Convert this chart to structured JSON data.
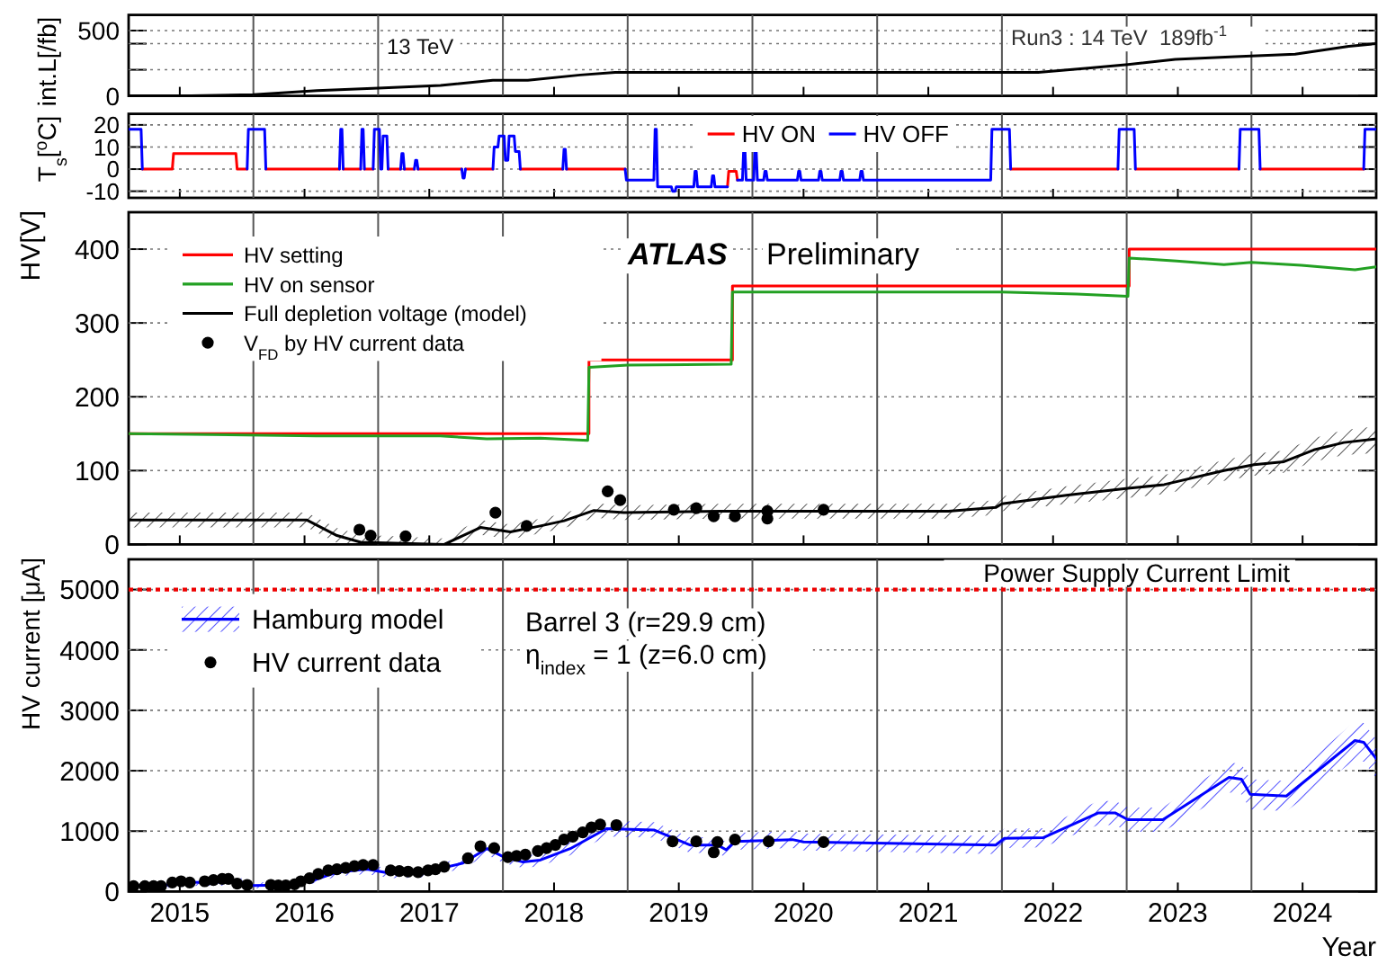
{
  "chart_data": [
    {
      "type": "line",
      "ylabel": "int.L[/fb]",
      "annotations": [
        "13 TeV",
        "Run3 : 14 TeV  189fb$^{-1}$"
      ],
      "x": [
        2015.0,
        2015.5,
        2016.0,
        2016.51,
        2017.0,
        2017.5,
        2017.92,
        2018.2,
        2018.62,
        2018.9,
        2022.29,
        2022.67,
        2023.01,
        2023.39,
        2023.87,
        2024.35,
        2024.78,
        2025.0
      ],
      "series": [
        {
          "color": "#000000",
          "values": [
            0,
            0,
            10,
            40,
            60,
            80,
            120,
            120,
            160,
            180,
            180,
            210,
            240,
            280,
            300,
            320,
            380,
            400
          ]
        }
      ],
      "xlim": [
        2015,
        2025
      ],
      "xticks": [
        {
          "value": 2015.41,
          "label": null
        },
        {
          "value": 2016.41,
          "label": null
        },
        {
          "value": 2017.41,
          "label": null
        },
        {
          "value": 2018.41,
          "label": null
        },
        {
          "value": 2019.41,
          "label": null
        },
        {
          "value": 2020.41,
          "label": null
        },
        {
          "value": 2021.41,
          "label": null
        },
        {
          "value": 2022.41,
          "label": null
        },
        {
          "value": 2023.41,
          "label": null
        },
        {
          "value": 2024.41,
          "label": null
        }
      ],
      "ylim": [
        0,
        620
      ],
      "yticks": [
        0,
        {
          "value": 200,
          "label": null
        },
        {
          "value": 400,
          "label": null
        },
        500
      ],
      "grid": "y",
      "tick_labels": "y",
      "ref_lines": [
        {
          "axis": "x",
          "value": 2016,
          "color": "#555555"
        },
        {
          "axis": "x",
          "value": 2017,
          "color": "#555555"
        },
        {
          "axis": "x",
          "value": 2018,
          "color": "#555555"
        },
        {
          "axis": "x",
          "value": 2019,
          "color": "#555555"
        },
        {
          "axis": "x",
          "value": 2020,
          "color": "#555555"
        },
        {
          "axis": "x",
          "value": 2021,
          "color": "#555555"
        },
        {
          "axis": "x",
          "value": 2022,
          "color": "#555555"
        },
        {
          "axis": "x",
          "value": 2023,
          "color": "#555555"
        },
        {
          "axis": "x",
          "value": 2024,
          "color": "#555555"
        }
      ]
    },
    {
      "type": "line",
      "ylabel": "T$_{s}$[$^{o}$C]",
      "series": [
        {
          "name": "HV ON",
          "color": "#ff0000",
          "x": [
            2015.11,
            2015.35,
            2015.36,
            2015.86,
            2015.87,
            2015.95,
            null,
            2016.1,
            2016.69,
            null,
            2016.72,
            2016.86,
            null,
            2016.89,
            2016.96,
            null,
            2017.08,
            2017.18,
            null,
            2017.21,
            2017.29,
            null,
            2017.32,
            2017.67,
            null,
            2017.7,
            2017.92,
            null,
            2018.14,
            2018.48,
            null,
            2018.51,
            2018.98,
            null,
            2019.8,
            2019.81,
            2019.87,
            2019.88,
            null,
            2022.07,
            2022.93,
            null,
            2023.07,
            2023.9,
            null,
            2024.07,
            2024.9
          ],
          "values": [
            0,
            0,
            7,
            7,
            0,
            0,
            null,
            0,
            0,
            null,
            0,
            0,
            null,
            0,
            0,
            null,
            0,
            0,
            null,
            0,
            0,
            null,
            0,
            0,
            null,
            0,
            0,
            null,
            0,
            0,
            null,
            0,
            0,
            null,
            -8,
            -1,
            -1,
            -5,
            null,
            0,
            0,
            null,
            0,
            0,
            null,
            0,
            0
          ]
        },
        {
          "name": "HV OFF",
          "color": "#0000ff",
          "x": [
            2015.0,
            2015.1,
            2015.11,
            null,
            2015.95,
            2015.96,
            2016.09,
            2016.1,
            null,
            2016.69,
            2016.7,
            2016.71,
            2016.72,
            null,
            2016.86,
            2016.87,
            2016.88,
            2016.89,
            null,
            2016.96,
            2016.97,
            2017.01,
            2017.02,
            2017.03,
            2017.04,
            2017.07,
            2017.08,
            null,
            2017.18,
            2017.19,
            2017.2,
            2017.21,
            null,
            2017.29,
            2017.3,
            2017.31,
            2017.32,
            null,
            2017.67,
            2017.68,
            2017.69,
            2017.7,
            null,
            2017.92,
            2017.93,
            2017.96,
            2017.97,
            2018.01,
            2018.02,
            2018.04,
            2018.05,
            2018.09,
            2018.1,
            2018.13,
            2018.14,
            null,
            2018.48,
            2018.49,
            2018.5,
            2018.51,
            null,
            2018.98,
            2018.99,
            2019.21,
            2019.22,
            2019.23,
            2019.24,
            2019.35,
            2019.36,
            2019.38,
            2019.39,
            2019.53,
            2019.54,
            2019.55,
            2019.56,
            2019.67,
            2019.68,
            2019.69,
            2019.7,
            2019.8,
            null,
            2019.88,
            2019.92,
            2019.93,
            2019.94,
            2019.95,
            2020.01,
            2020.02,
            2020.03,
            2020.04,
            2020.09,
            2020.1,
            2020.11,
            2020.12,
            2020.36,
            2020.37,
            2020.38,
            2020.39,
            2020.53,
            2020.54,
            2020.55,
            2020.56,
            2020.7,
            2020.71,
            2020.72,
            2020.73,
            2020.86,
            2020.87,
            2020.88,
            2020.89,
            2021.91,
            2021.92,
            2022.06,
            2022.07,
            null,
            2022.93,
            2022.94,
            2023.06,
            2023.07,
            null,
            2023.9,
            2023.91,
            2024.06,
            2024.07,
            null,
            2024.9,
            2024.91,
            2025.0
          ],
          "values": [
            18,
            18,
            0,
            null,
            0,
            18,
            18,
            0,
            null,
            0,
            18,
            18,
            0,
            null,
            0,
            18,
            18,
            0,
            null,
            0,
            18,
            18,
            0,
            0,
            15,
            15,
            0,
            null,
            0,
            7,
            7,
            0,
            null,
            0,
            4,
            4,
            0,
            null,
            0,
            -4,
            -4,
            0,
            null,
            0,
            10,
            10,
            15,
            15,
            4,
            4,
            15,
            15,
            8,
            8,
            0,
            null,
            0,
            9,
            9,
            0,
            null,
            0,
            -5,
            -5,
            18,
            18,
            -8,
            -8,
            -10,
            -10,
            -8,
            -8,
            -1,
            -1,
            -8,
            -8,
            -3,
            -3,
            -8,
            -8,
            null,
            -5,
            -5,
            9,
            9,
            -5,
            -5,
            9,
            9,
            -5,
            -5,
            -1,
            -1,
            -5,
            -5,
            -1,
            -1,
            -5,
            -5,
            -1,
            -1,
            -5,
            -5,
            -1,
            -1,
            -5,
            -5,
            -1,
            -1,
            -5,
            -5,
            18,
            18,
            0,
            null,
            0,
            18,
            18,
            0,
            null,
            0,
            18,
            18,
            0,
            null,
            0,
            18,
            18
          ]
        }
      ],
      "xlim": [
        2015,
        2025
      ],
      "xticks": [
        {
          "value": 2015.41,
          "label": null
        },
        {
          "value": 2016.41,
          "label": null
        },
        {
          "value": 2017.41,
          "label": null
        },
        {
          "value": 2018.41,
          "label": null
        },
        {
          "value": 2019.41,
          "label": null
        },
        {
          "value": 2020.41,
          "label": null
        },
        {
          "value": 2021.41,
          "label": null
        },
        {
          "value": 2022.41,
          "label": null
        },
        {
          "value": 2023.41,
          "label": null
        },
        {
          "value": 2024.41,
          "label": null
        }
      ],
      "ylim": [
        -13,
        25
      ],
      "yticks": [
        -10,
        0,
        10,
        20
      ],
      "grid": "y",
      "legend": "top",
      "tick_labels": "y",
      "ref_lines": [
        {
          "axis": "x",
          "value": 2016,
          "color": "#555555"
        },
        {
          "axis": "x",
          "value": 2017,
          "color": "#555555"
        },
        {
          "axis": "x",
          "value": 2018,
          "color": "#555555"
        },
        {
          "axis": "x",
          "value": 2019,
          "color": "#555555"
        },
        {
          "axis": "x",
          "value": 2020,
          "color": "#555555"
        },
        {
          "axis": "x",
          "value": 2021,
          "color": "#555555"
        },
        {
          "axis": "x",
          "value": 2022,
          "color": "#555555"
        },
        {
          "axis": "x",
          "value": 2023,
          "color": "#555555"
        },
        {
          "axis": "x",
          "value": 2024,
          "color": "#555555"
        }
      ]
    },
    {
      "type": "line",
      "ylabel": "HV[V]",
      "annotations": [
        "ATLAS",
        "Preliminary"
      ],
      "series": [
        {
          "name": "HV setting",
          "type": "step",
          "color": "#ff0000",
          "x": [
            2015,
            2018.69,
            2019.84,
            2023.02,
            2025
          ],
          "values": [
            150,
            250,
            350,
            400,
            400
          ]
        },
        {
          "name": "HV on sensor",
          "color": "#22a022",
          "x": [
            2015,
            2015.5,
            2016.5,
            2017.5,
            2017.87,
            2018.3,
            2018.68,
            2018.69,
            2019.0,
            2019.83,
            2019.84,
            2021.0,
            2022.0,
            2022.6,
            2023.01,
            2023.02,
            2023.4,
            2023.78,
            2024.0,
            2024.4,
            2024.83,
            2025
          ],
          "values": [
            150,
            149,
            147,
            147,
            143,
            144,
            141,
            240,
            243,
            244,
            342,
            342,
            342,
            339,
            336,
            388,
            384,
            379,
            382,
            378,
            372,
            376
          ]
        },
        {
          "name": "Full depletion voltage (model)",
          "color": "#000000",
          "x": [
            2015,
            2016.43,
            2016.67,
            2016.86,
            2017.53,
            2017.68,
            2017.82,
            2018.06,
            2018.3,
            2018.49,
            2018.73,
            2018.97,
            2019.74,
            2021.57,
            2021.95,
            2022.0,
            2022.53,
            2023.01,
            2023.3,
            2023.78,
            2024.02,
            2024.26,
            2024.5,
            2024.74,
            2025
          ],
          "values": [
            33,
            33,
            12,
            3,
            0,
            12,
            23,
            17,
            25,
            32,
            46,
            43,
            45,
            45,
            50,
            55,
            67,
            76,
            81,
            100,
            108,
            112,
            128,
            138,
            143
          ],
          "lower": [
            23,
            23,
            2,
            0,
            0,
            2,
            13,
            7,
            15,
            22,
            36,
            33,
            35,
            35,
            40,
            45,
            55,
            63,
            68,
            86,
            93,
            97,
            112,
            121,
            124
          ],
          "upper": [
            43,
            43,
            22,
            13,
            8,
            22,
            33,
            27,
            35,
            42,
            56,
            53,
            55,
            55,
            60,
            65,
            79,
            89,
            94,
            114,
            123,
            127,
            144,
            155,
            160
          ]
        },
        {
          "name": "V$_{FD}$ by HV current data",
          "type": "scatter",
          "marker": "circle",
          "color": "#000000",
          "x": [
            2016.85,
            2016.94,
            2017.22,
            2017.94,
            2018.19,
            2018.84,
            2018.94,
            2019.37,
            2019.55,
            2019.69,
            2019.86,
            2020.12,
            2020.12,
            2020.57
          ],
          "values": [
            20,
            12,
            11,
            43,
            25,
            72,
            60,
            47,
            49,
            38,
            38,
            45,
            35,
            47
          ]
        }
      ],
      "xlim": [
        2015,
        2025
      ],
      "xticks": [
        {
          "value": 2015.41,
          "label": null
        },
        {
          "value": 2016.41,
          "label": null
        },
        {
          "value": 2017.41,
          "label": null
        },
        {
          "value": 2018.41,
          "label": null
        },
        {
          "value": 2019.41,
          "label": null
        },
        {
          "value": 2020.41,
          "label": null
        },
        {
          "value": 2021.41,
          "label": null
        },
        {
          "value": 2022.41,
          "label": null
        },
        {
          "value": 2023.41,
          "label": null
        },
        {
          "value": 2024.41,
          "label": null
        }
      ],
      "ylim": [
        0,
        450
      ],
      "yticks": [
        0,
        100,
        200,
        300,
        400
      ],
      "grid": "y",
      "legend": "top left",
      "tick_labels": "y",
      "ref_lines": [
        {
          "axis": "x",
          "value": 2016,
          "color": "#555555"
        },
        {
          "axis": "x",
          "value": 2017,
          "color": "#555555"
        },
        {
          "axis": "x",
          "value": 2018,
          "color": "#555555"
        },
        {
          "axis": "x",
          "value": 2019,
          "color": "#555555"
        },
        {
          "axis": "x",
          "value": 2020,
          "color": "#555555"
        },
        {
          "axis": "x",
          "value": 2021,
          "color": "#555555"
        },
        {
          "axis": "x",
          "value": 2022,
          "color": "#555555"
        },
        {
          "axis": "x",
          "value": 2023,
          "color": "#555555"
        },
        {
          "axis": "x",
          "value": 2024,
          "color": "#555555"
        }
      ]
    },
    {
      "type": "line",
      "xlabel": "Year",
      "ylabel": "HV current [μA]",
      "annotations": [
        "Barrel 3 (r=29.9 cm)",
        "η$_{index}$ = 1 (z=6.0 cm)"
      ],
      "series": [
        {
          "name": "Hamburg model",
          "color": "#0000ff",
          "x": [
            2015.0,
            2015.35,
            2015.5,
            2015.9,
            2016.0,
            2016.3,
            2016.5,
            2016.67,
            2016.91,
            2017.1,
            2017.35,
            2017.68,
            2017.87,
            2018.01,
            2018.16,
            2018.3,
            2018.54,
            2018.83,
            2019.21,
            2019.5,
            2019.72,
            2019.79,
            2019.86,
            2020.32,
            2020.41,
            2021.95,
            2022.02,
            2022.33,
            2022.77,
            2022.91,
            2023.01,
            2023.29,
            2023.82,
            2023.92,
            2023.99,
            2024.28,
            2024.83,
            2024.9,
            2025.0
          ],
          "values": [
            90,
            110,
            150,
            160,
            100,
            110,
            200,
            320,
            370,
            300,
            310,
            470,
            710,
            570,
            490,
            520,
            710,
            1040,
            1020,
            770,
            770,
            690,
            830,
            860,
            820,
            770,
            880,
            890,
            1300,
            1300,
            1190,
            1190,
            1890,
            1860,
            1610,
            1580,
            2500,
            2470,
            2200
          ],
          "lower": [
            40,
            60,
            90,
            100,
            50,
            60,
            140,
            250,
            290,
            220,
            230,
            380,
            610,
            470,
            390,
            420,
            600,
            910,
            890,
            640,
            640,
            560,
            690,
            720,
            680,
            620,
            720,
            730,
            1100,
            1100,
            990,
            990,
            1640,
            1610,
            1360,
            1330,
            2180,
            2150,
            1880
          ],
          "upper": [
            140,
            160,
            210,
            220,
            150,
            160,
            260,
            390,
            450,
            380,
            390,
            560,
            810,
            670,
            590,
            620,
            820,
            1170,
            1150,
            900,
            900,
            820,
            970,
            1000,
            960,
            920,
            1040,
            1050,
            1500,
            1500,
            1390,
            1390,
            2140,
            2110,
            1860,
            1830,
            2820,
            2790,
            2520
          ]
        },
        {
          "name": "HV current data",
          "type": "scatter",
          "marker": "circle",
          "color": "#000000",
          "x": [
            2015.04,
            2015.13,
            2015.2,
            2015.26,
            2015.35,
            2015.42,
            2015.49,
            2015.61,
            2015.68,
            2015.75,
            2015.8,
            2015.87,
            2015.95,
            2016.14,
            2016.2,
            2016.26,
            2016.33,
            2016.38,
            2016.45,
            2016.52,
            2016.6,
            2016.67,
            2016.74,
            2016.81,
            2016.88,
            2016.96,
            2017.1,
            2017.17,
            2017.24,
            2017.32,
            2017.4,
            2017.46,
            2017.53,
            2017.72,
            2017.82,
            2017.93,
            2018.04,
            2018.11,
            2018.18,
            2018.28,
            2018.35,
            2018.42,
            2018.49,
            2018.56,
            2018.64,
            2018.71,
            2018.78,
            2018.91,
            2019.36,
            2019.55,
            2019.69,
            2019.72,
            2019.86,
            2020.13,
            2020.57
          ],
          "values": [
            90,
            90,
            90,
            90,
            150,
            170,
            150,
            170,
            190,
            210,
            210,
            130,
            110,
            110,
            100,
            100,
            120,
            170,
            220,
            290,
            350,
            370,
            390,
            420,
            440,
            440,
            350,
            340,
            330,
            320,
            350,
            370,
            410,
            550,
            750,
            720,
            570,
            590,
            610,
            670,
            720,
            770,
            860,
            910,
            980,
            1060,
            1110,
            1100,
            830,
            830,
            650,
            820,
            860,
            830,
            820
          ]
        }
      ],
      "xlim": [
        2015,
        2025
      ],
      "xticks": [
        {
          "value": 2015.41,
          "label": "2015"
        },
        {
          "value": 2016.41,
          "label": "2016"
        },
        {
          "value": 2017.41,
          "label": "2017"
        },
        {
          "value": 2018.41,
          "label": "2018"
        },
        {
          "value": 2019.41,
          "label": "2019"
        },
        {
          "value": 2020.41,
          "label": "2020"
        },
        {
          "value": 2021.41,
          "label": "2021"
        },
        {
          "value": 2022.41,
          "label": "2022"
        },
        {
          "value": 2023.41,
          "label": "2023"
        },
        {
          "value": 2024.41,
          "label": "2024"
        }
      ],
      "ylim": [
        0,
        5500
      ],
      "yticks": [
        0,
        1000,
        2000,
        3000,
        4000,
        5000
      ],
      "grid": "y",
      "legend": "top left",
      "ref_lines": [
        {
          "axis": "y",
          "value": 5000,
          "label": "Power Supply Current Limit",
          "color": "#ee0000",
          "line_style": "dotted"
        },
        {
          "axis": "x",
          "value": 2016,
          "color": "#555555"
        },
        {
          "axis": "x",
          "value": 2017,
          "color": "#555555"
        },
        {
          "axis": "x",
          "value": 2018,
          "color": "#555555"
        },
        {
          "axis": "x",
          "value": 2019,
          "color": "#555555"
        },
        {
          "axis": "x",
          "value": 2020,
          "color": "#555555"
        },
        {
          "axis": "x",
          "value": 2021,
          "color": "#555555"
        },
        {
          "axis": "x",
          "value": 2022,
          "color": "#555555"
        },
        {
          "axis": "x",
          "value": 2023,
          "color": "#555555"
        },
        {
          "axis": "x",
          "value": 2024,
          "color": "#555555"
        }
      ]
    }
  ]
}
